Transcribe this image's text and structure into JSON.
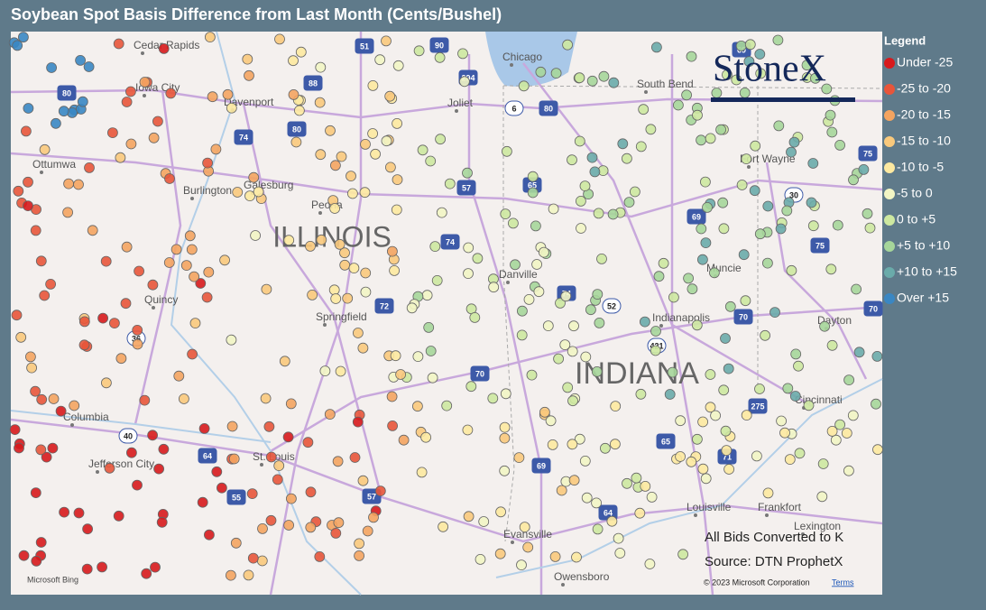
{
  "header": {
    "title": "Soybean Spot Basis Difference from Last Month (Cents/Bushel)"
  },
  "legend": {
    "title": "Legend",
    "items": [
      {
        "label": "Under -25",
        "color": "#d7191c"
      },
      {
        "label": "-25 to -20",
        "color": "#e8553a"
      },
      {
        "label": "-20 to -15",
        "color": "#f4a460"
      },
      {
        "label": "-15 to -10",
        "color": "#f9c97c"
      },
      {
        "label": "-10 to -5",
        "color": "#fde9a0"
      },
      {
        "label": "-5 to 0",
        "color": "#f2f5c4"
      },
      {
        "label": "0 to +5",
        "color": "#cde8a0"
      },
      {
        "label": "+5 to +10",
        "color": "#a6d69a"
      },
      {
        "label": "+10 to +15",
        "color": "#6aabaa"
      },
      {
        "label": "Over +15",
        "color": "#3a87c3"
      }
    ]
  },
  "map": {
    "cities": [
      "Cedar Rapids",
      "Iowa City",
      "Davenport",
      "Ottumwa",
      "Galesburg",
      "Burlington",
      "Peoria",
      "Quincy",
      "Springfield",
      "Columbia",
      "Jefferson City",
      "St. Louis",
      "Chicago",
      "Joliet",
      "South Bend",
      "Fort Wayne",
      "Danville",
      "Muncie",
      "Indianapolis",
      "Dayton",
      "Cincinnati",
      "Evansville",
      "Owensboro",
      "Louisville",
      "Frankfort",
      "Lexington"
    ],
    "regions": [
      "ILLINOIS",
      "INDIANA"
    ],
    "shields": [
      "51",
      "90",
      "294",
      "80",
      "88",
      "80",
      "74",
      "6",
      "80",
      "69",
      "65",
      "57",
      "74",
      "72",
      "74",
      "52",
      "69",
      "70",
      "421",
      "70",
      "36",
      "40",
      "64",
      "55",
      "57",
      "69",
      "64",
      "65",
      "71",
      "275",
      "75",
      "30",
      "75",
      "70"
    ]
  },
  "logo": "StoneX",
  "notes": [
    "All Bids Converted to K",
    "Source: DTN ProphetX"
  ],
  "footer": {
    "attribution": "Microsoft Bing",
    "copyright": "© 2023 Microsoft Corporation",
    "terms": "Terms"
  }
}
